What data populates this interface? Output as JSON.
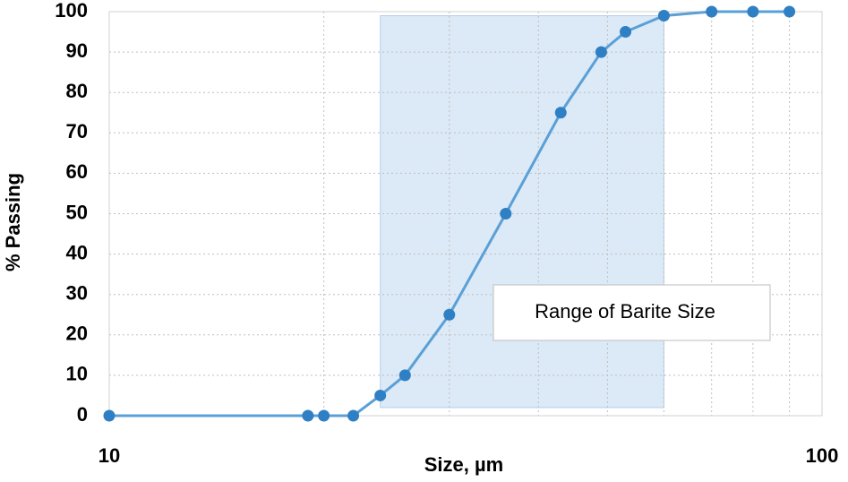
{
  "chart_data": {
    "type": "line",
    "xlabel": "Size, µm",
    "ylabel": "% Passing",
    "x": [
      10,
      19,
      20,
      22,
      24,
      26,
      30,
      36,
      43,
      49,
      53,
      60,
      70,
      80,
      90
    ],
    "series": [
      {
        "color": "#2f7fc4",
        "line_color": "#5aa0d6",
        "values": [
          0,
          0,
          0,
          0,
          5,
          10,
          25,
          50,
          75,
          90,
          95,
          99,
          100,
          100,
          100
        ]
      }
    ],
    "xlim": [
      10,
      100
    ],
    "xticks": [
      10,
      100
    ],
    "xgrid": [
      20,
      30,
      40,
      50,
      60,
      70,
      80,
      90
    ],
    "xlog": true,
    "ylim": [
      0,
      100
    ],
    "yticks": [
      0,
      10,
      20,
      30,
      40,
      50,
      60,
      70,
      80,
      90,
      100
    ],
    "grid": true,
    "band": {
      "x": [
        24,
        60
      ],
      "y": [
        2,
        99
      ],
      "color": "#dce9f6",
      "label": "Range of Barite Size"
    }
  }
}
